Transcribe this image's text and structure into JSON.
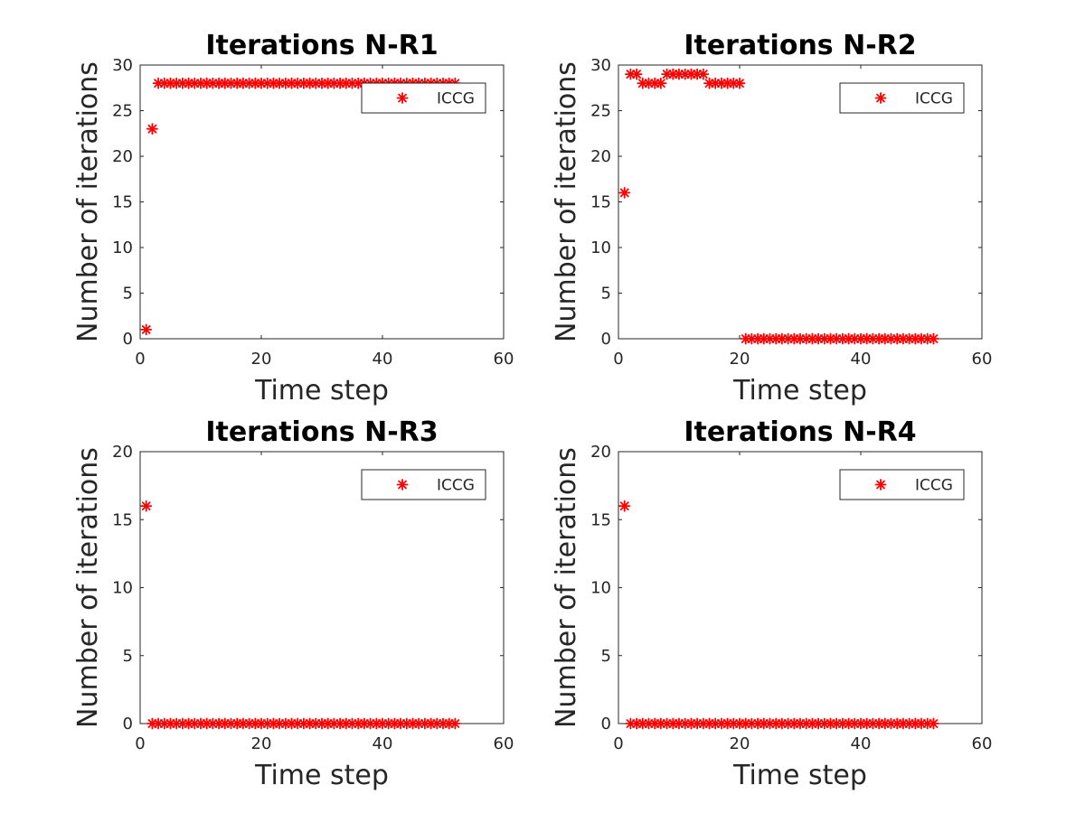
{
  "chart_data": [
    {
      "type": "scatter",
      "title": "Iterations N-R1",
      "xlabel": "Time step",
      "ylabel": "Number of iterations",
      "xlim": [
        0,
        60
      ],
      "ylim": [
        0,
        30
      ],
      "xticks": [
        "0",
        "20",
        "40",
        "60"
      ],
      "yticks": [
        "0",
        "5",
        "10",
        "15",
        "20",
        "25",
        "30"
      ],
      "legend_position": "top-right",
      "series": [
        {
          "name": "ICCG",
          "color": "#ff0000",
          "marker": "asterisk",
          "x": [
            1,
            2,
            3,
            4,
            5,
            6,
            7,
            8,
            9,
            10,
            11,
            12,
            13,
            14,
            15,
            16,
            17,
            18,
            19,
            20,
            21,
            22,
            23,
            24,
            25,
            26,
            27,
            28,
            29,
            30,
            31,
            32,
            33,
            34,
            35,
            36,
            37,
            38,
            39,
            40,
            41,
            42,
            43,
            44,
            45,
            46,
            47,
            48,
            49,
            50,
            51,
            52
          ],
          "y": [
            1,
            23,
            28,
            28,
            28,
            28,
            28,
            28,
            28,
            28,
            28,
            28,
            28,
            28,
            28,
            28,
            28,
            28,
            28,
            28,
            28,
            28,
            28,
            28,
            28,
            28,
            28,
            28,
            28,
            28,
            28,
            28,
            28,
            28,
            28,
            28,
            28,
            28,
            28,
            28,
            28,
            28,
            28,
            28,
            28,
            28,
            28,
            28,
            28,
            28,
            28,
            28
          ]
        }
      ]
    },
    {
      "type": "scatter",
      "title": "Iterations N-R2",
      "xlabel": "Time step",
      "ylabel": "Number of iterations",
      "xlim": [
        0,
        60
      ],
      "ylim": [
        0,
        30
      ],
      "xticks": [
        "0",
        "20",
        "40",
        "60"
      ],
      "yticks": [
        "0",
        "5",
        "10",
        "15",
        "20",
        "25",
        "30"
      ],
      "legend_position": "top-right",
      "series": [
        {
          "name": "ICCG",
          "color": "#ff0000",
          "marker": "asterisk",
          "x": [
            1,
            2,
            3,
            4,
            5,
            6,
            7,
            8,
            9,
            10,
            11,
            12,
            13,
            14,
            15,
            16,
            17,
            18,
            19,
            20,
            21,
            22,
            23,
            24,
            25,
            26,
            27,
            28,
            29,
            30,
            31,
            32,
            33,
            34,
            35,
            36,
            37,
            38,
            39,
            40,
            41,
            42,
            43,
            44,
            45,
            46,
            47,
            48,
            49,
            50,
            51,
            52
          ],
          "y": [
            16,
            29,
            29,
            28,
            28,
            28,
            28,
            29,
            29,
            29,
            29,
            29,
            29,
            29,
            28,
            28,
            28,
            28,
            28,
            28,
            0,
            0,
            0,
            0,
            0,
            0,
            0,
            0,
            0,
            0,
            0,
            0,
            0,
            0,
            0,
            0,
            0,
            0,
            0,
            0,
            0,
            0,
            0,
            0,
            0,
            0,
            0,
            0,
            0,
            0,
            0,
            0
          ]
        }
      ]
    },
    {
      "type": "scatter",
      "title": "Iterations N-R3",
      "xlabel": "Time step",
      "ylabel": "Number of iterations",
      "xlim": [
        0,
        60
      ],
      "ylim": [
        0,
        20
      ],
      "xticks": [
        "0",
        "20",
        "40",
        "60"
      ],
      "yticks": [
        "0",
        "5",
        "10",
        "15",
        "20"
      ],
      "legend_position": "top-right",
      "series": [
        {
          "name": "ICCG",
          "color": "#ff0000",
          "marker": "asterisk",
          "x": [
            1,
            2,
            3,
            4,
            5,
            6,
            7,
            8,
            9,
            10,
            11,
            12,
            13,
            14,
            15,
            16,
            17,
            18,
            19,
            20,
            21,
            22,
            23,
            24,
            25,
            26,
            27,
            28,
            29,
            30,
            31,
            32,
            33,
            34,
            35,
            36,
            37,
            38,
            39,
            40,
            41,
            42,
            43,
            44,
            45,
            46,
            47,
            48,
            49,
            50,
            51,
            52
          ],
          "y": [
            16,
            0,
            0,
            0,
            0,
            0,
            0,
            0,
            0,
            0,
            0,
            0,
            0,
            0,
            0,
            0,
            0,
            0,
            0,
            0,
            0,
            0,
            0,
            0,
            0,
            0,
            0,
            0,
            0,
            0,
            0,
            0,
            0,
            0,
            0,
            0,
            0,
            0,
            0,
            0,
            0,
            0,
            0,
            0,
            0,
            0,
            0,
            0,
            0,
            0,
            0,
            0
          ]
        }
      ]
    },
    {
      "type": "scatter",
      "title": "Iterations N-R4",
      "xlabel": "Time step",
      "ylabel": "Number of iterations",
      "xlim": [
        0,
        60
      ],
      "ylim": [
        0,
        20
      ],
      "xticks": [
        "0",
        "20",
        "40",
        "60"
      ],
      "yticks": [
        "0",
        "5",
        "10",
        "15",
        "20"
      ],
      "legend_position": "top-right",
      "series": [
        {
          "name": "ICCG",
          "color": "#ff0000",
          "marker": "asterisk",
          "x": [
            1,
            2,
            3,
            4,
            5,
            6,
            7,
            8,
            9,
            10,
            11,
            12,
            13,
            14,
            15,
            16,
            17,
            18,
            19,
            20,
            21,
            22,
            23,
            24,
            25,
            26,
            27,
            28,
            29,
            30,
            31,
            32,
            33,
            34,
            35,
            36,
            37,
            38,
            39,
            40,
            41,
            42,
            43,
            44,
            45,
            46,
            47,
            48,
            49,
            50,
            51,
            52
          ],
          "y": [
            16,
            0,
            0,
            0,
            0,
            0,
            0,
            0,
            0,
            0,
            0,
            0,
            0,
            0,
            0,
            0,
            0,
            0,
            0,
            0,
            0,
            0,
            0,
            0,
            0,
            0,
            0,
            0,
            0,
            0,
            0,
            0,
            0,
            0,
            0,
            0,
            0,
            0,
            0,
            0,
            0,
            0,
            0,
            0,
            0,
            0,
            0,
            0,
            0,
            0,
            0,
            0
          ]
        }
      ]
    }
  ]
}
